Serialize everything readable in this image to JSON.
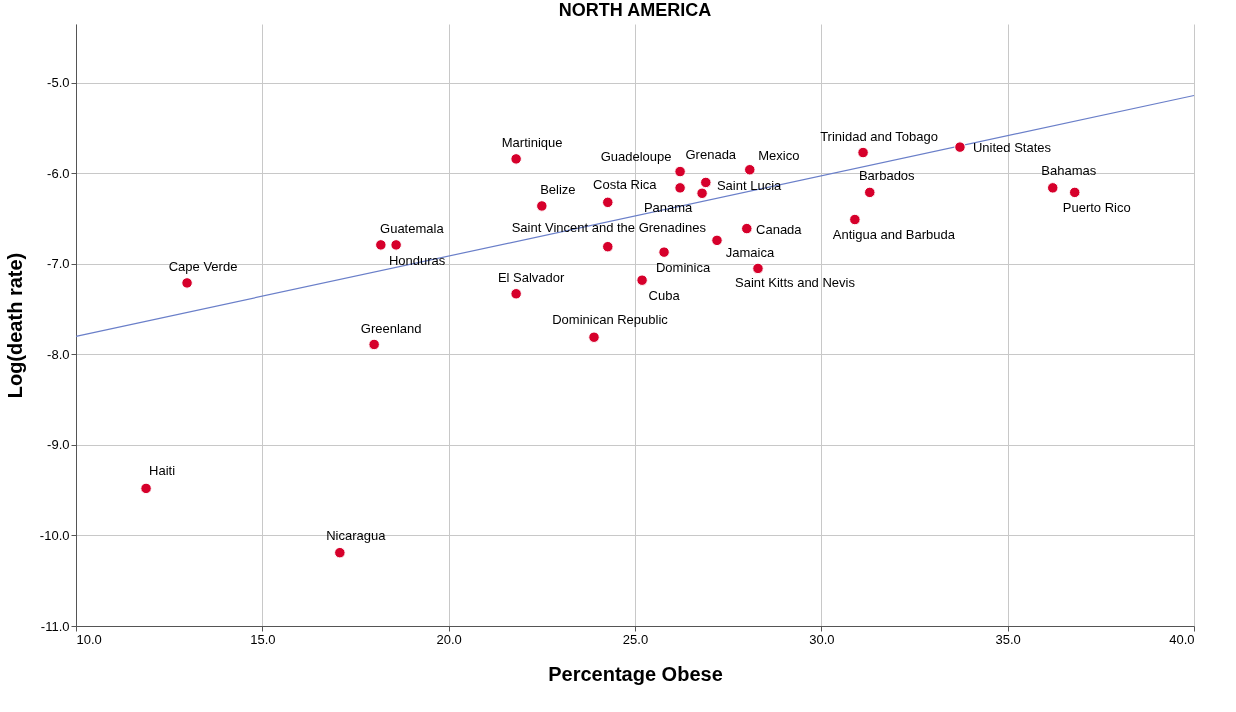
{
  "chart_data": {
    "type": "scatter",
    "title": "NORTH AMERICA",
    "xlabel": "Percentage Obese",
    "ylabel": "Log(death rate)",
    "xlim": [
      10,
      40
    ],
    "ylim": [
      -11,
      -4.35
    ],
    "xticks": [
      {
        "value": 10,
        "label": "10.0"
      },
      {
        "value": 15,
        "label": "15.0"
      },
      {
        "value": 20,
        "label": "20.0"
      },
      {
        "value": 25,
        "label": "25.0"
      },
      {
        "value": 30,
        "label": "30.0"
      },
      {
        "value": 35,
        "label": "35.0"
      },
      {
        "value": 40,
        "label": "40.0"
      }
    ],
    "yticks": [
      {
        "value": -11,
        "label": "-11.0"
      },
      {
        "value": -10,
        "label": "-10.0"
      },
      {
        "value": -9,
        "label": "-9.0"
      },
      {
        "value": -8,
        "label": "-8.0"
      },
      {
        "value": -7,
        "label": "-7.0"
      },
      {
        "value": -6,
        "label": "-6.0"
      },
      {
        "value": -5,
        "label": "-5.0"
      }
    ],
    "grid": true,
    "series": [
      {
        "marker": "circle",
        "color": "#d6002b",
        "x": [
          11.88,
          12.98,
          17.08,
          18.0,
          18.18,
          18.59,
          21.81,
          21.81,
          22.5,
          24.27,
          24.27,
          23.9,
          25.19,
          25.78,
          26.21,
          26.21,
          26.9,
          26.8,
          27.2,
          28.0,
          28.08,
          28.3,
          31.12,
          30.9,
          31.3,
          33.72,
          36.21,
          36.8
        ],
        "values": [
          -9.48,
          -7.21,
          -10.19,
          -7.89,
          -6.79,
          -6.79,
          -5.84,
          -7.33,
          -6.36,
          -6.32,
          -6.81,
          -7.81,
          -7.18,
          -6.87,
          -5.98,
          -6.16,
          -6.1,
          -6.22,
          -6.74,
          -6.61,
          -5.96,
          -7.05,
          -5.77,
          -6.51,
          -6.21,
          -5.71,
          -6.16,
          -6.21
        ]
      },
      {
        "type": "line",
        "line_style": "solid",
        "color": "#6a7fc9",
        "x": [
          10,
          40
        ],
        "values": [
          -7.8,
          -5.14
        ]
      }
    ],
    "annotations": [
      {
        "text": "Haiti",
        "x": 11.88,
        "y": -9.48
      },
      {
        "text": "Cape Verde",
        "x": 12.98,
        "y": -7.21
      },
      {
        "text": "Nicaragua",
        "x": 17.08,
        "y": -10.19
      },
      {
        "text": "Greenland",
        "x": 18.0,
        "y": -7.89
      },
      {
        "text": "Guatemala",
        "x": 18.18,
        "y": -6.79
      },
      {
        "text": "Honduras",
        "x": 18.59,
        "y": -6.79
      },
      {
        "text": "Martinique",
        "x": 21.81,
        "y": -5.84
      },
      {
        "text": "El Salvador",
        "x": 21.81,
        "y": -7.33
      },
      {
        "text": "Belize",
        "x": 22.5,
        "y": -6.36
      },
      {
        "text": "Costa Rica",
        "x": 24.27,
        "y": -6.32
      },
      {
        "text": "Saint Vincent and the Grenadines",
        "x": 24.27,
        "y": -6.81
      },
      {
        "text": "Dominican Republic",
        "x": 23.9,
        "y": -7.81
      },
      {
        "text": "Cuba",
        "x": 25.19,
        "y": -7.18
      },
      {
        "text": "Dominica",
        "x": 25.78,
        "y": -6.87
      },
      {
        "text": "Guadeloupe",
        "x": 26.21,
        "y": -5.98
      },
      {
        "text": "Panama",
        "x": 26.21,
        "y": -6.16
      },
      {
        "text": "Grenada",
        "x": 26.9,
        "y": -6.1
      },
      {
        "text": "Saint Lucia",
        "x": 26.8,
        "y": -6.22
      },
      {
        "text": "Jamaica",
        "x": 27.2,
        "y": -6.74
      },
      {
        "text": "Canada",
        "x": 28.0,
        "y": -6.61
      },
      {
        "text": "Mexico",
        "x": 28.08,
        "y": -5.96
      },
      {
        "text": "Saint Kitts and Nevis",
        "x": 28.3,
        "y": -7.05
      },
      {
        "text": "Trinidad and Tobago",
        "x": 31.12,
        "y": -5.77
      },
      {
        "text": "Antigua and Barbuda",
        "x": 30.9,
        "y": -6.51
      },
      {
        "text": "Barbados",
        "x": 31.3,
        "y": -6.21
      },
      {
        "text": "United States",
        "x": 33.72,
        "y": -5.71
      },
      {
        "text": "Bahamas",
        "x": 36.21,
        "y": -6.16
      },
      {
        "text": "Puerto Rico",
        "x": 36.8,
        "y": -6.21
      }
    ]
  }
}
